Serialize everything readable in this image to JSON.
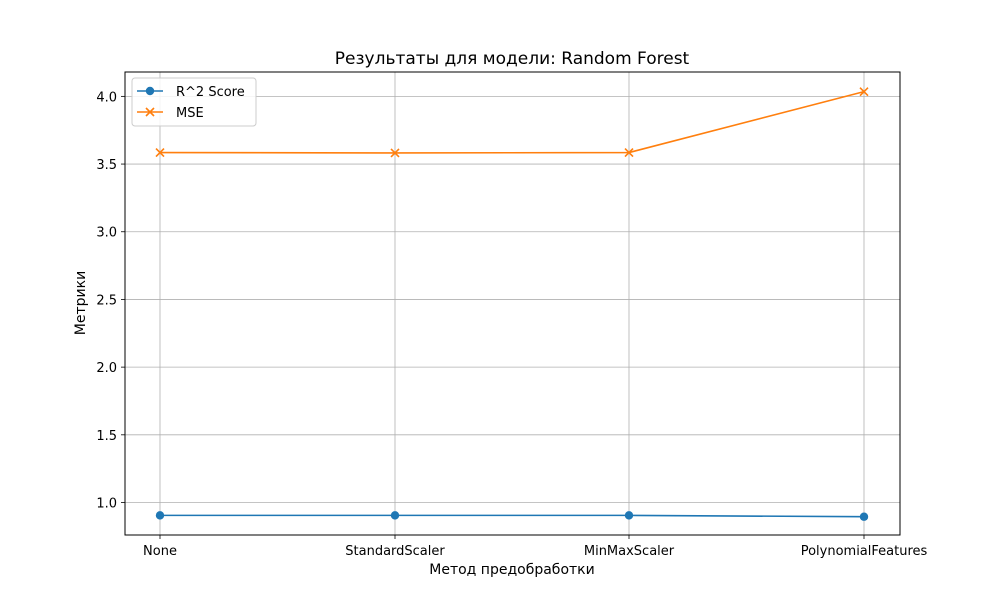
{
  "chart_data": {
    "type": "line",
    "title": "Результаты для модели: Random Forest",
    "xlabel": "Метод предобработки",
    "ylabel": "Метрики",
    "categories": [
      "None",
      "StandardScaler",
      "MinMaxScaler",
      "PolynomialFeatures"
    ],
    "yticks": [
      "1.0",
      "1.5",
      "2.0",
      "2.5",
      "3.0",
      "3.5",
      "4.0"
    ],
    "ylim": [
      0.76,
      4.18
    ],
    "grid": true,
    "legend_position": "upper-left",
    "series": [
      {
        "name": "R^2 Score",
        "color": "#1f77b4",
        "marker": "circle",
        "values": [
          0.905,
          0.905,
          0.905,
          0.895
        ]
      },
      {
        "name": "MSE",
        "color": "#ff7f0e",
        "marker": "x",
        "values": [
          3.585,
          3.582,
          3.585,
          4.035
        ]
      }
    ]
  }
}
